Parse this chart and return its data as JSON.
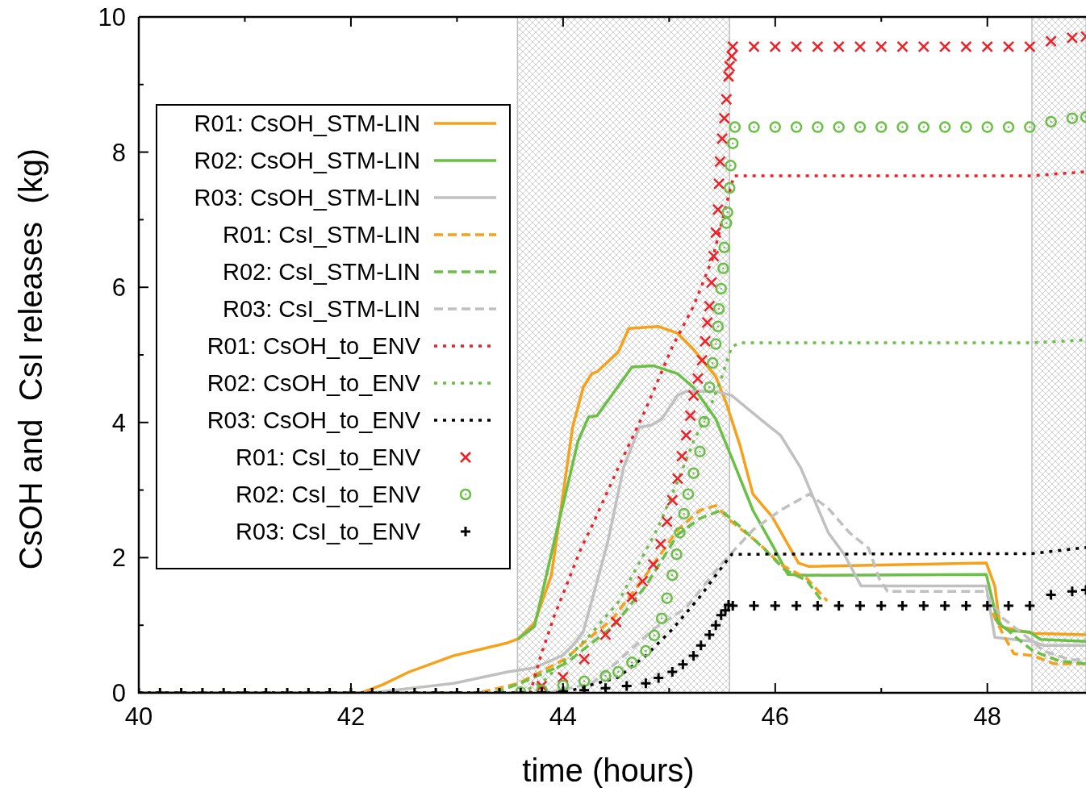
{
  "chart_data": {
    "type": "line",
    "xlabel": "time (hours)",
    "ylabel": "CsOH and  CsI releases  (kg)",
    "xlim": [
      40,
      48.93
    ],
    "ylim": [
      0,
      10
    ],
    "xticks": [
      40,
      {
        "value": 41,
        "label": null
      },
      42,
      {
        "value": 43,
        "label": null
      },
      44,
      {
        "value": 45,
        "label": null
      },
      46,
      {
        "value": 47,
        "label": null
      },
      48
    ],
    "yticks": [
      0,
      {
        "value": 1,
        "label": null
      },
      2,
      {
        "value": 3,
        "label": null
      },
      4,
      {
        "value": 5,
        "label": null
      },
      6,
      {
        "value": 7,
        "label": null
      },
      8,
      {
        "value": 9,
        "label": null
      },
      10
    ],
    "grid": false,
    "legend": "top left",
    "bands": [
      {
        "axis": "x",
        "from": 43.57,
        "to": 45.57,
        "color": "#c0c0c0"
      },
      {
        "axis": "x",
        "from": 48.42,
        "to": 48.93,
        "color": "#c0c0c0"
      }
    ],
    "series": [
      {
        "name": "R01: CsOH_STM-LIN",
        "color": "#f7a11a",
        "line_style": "solid",
        "x": [
          40,
          42.1,
          42.3,
          42.55,
          42.97,
          43.48,
          43.58,
          43.73,
          43.89,
          44.0,
          44.09,
          44.19,
          44.27,
          44.32,
          44.52,
          44.62,
          44.9,
          45.08,
          45.23,
          45.44,
          45.54,
          45.67,
          45.79,
          45.97,
          46.14,
          46.22,
          46.32,
          47.99,
          48.07,
          48.12,
          48.43,
          48.93
        ],
        "values": [
          0,
          0,
          0.12,
          0.31,
          0.55,
          0.74,
          0.8,
          1.03,
          1.74,
          2.94,
          3.93,
          4.52,
          4.72,
          4.75,
          5.04,
          5.39,
          5.42,
          5.32,
          5.08,
          4.68,
          4.28,
          3.65,
          2.94,
          2.61,
          2.14,
          1.92,
          1.87,
          1.92,
          1.58,
          0.98,
          0.88,
          0.86
        ]
      },
      {
        "name": "R02: CsOH_STM-LIN",
        "color": "#6abf45",
        "line_style": "solid",
        "x": [
          43.58,
          43.73,
          43.96,
          44.07,
          44.14,
          44.24,
          44.32,
          44.65,
          44.85,
          45.08,
          45.23,
          45.44,
          45.59,
          45.79,
          45.99,
          46.12,
          46.3,
          47.99,
          48.1,
          48.2,
          48.4,
          48.5,
          48.93
        ],
        "values": [
          0.8,
          0.98,
          2.53,
          3.25,
          3.72,
          4.08,
          4.1,
          4.82,
          4.84,
          4.72,
          4.52,
          4.05,
          3.48,
          2.7,
          2.14,
          1.75,
          1.74,
          1.75,
          1.03,
          0.92,
          0.9,
          0.79,
          0.76
        ]
      },
      {
        "name": "R03: CsOH_STM-LIN",
        "color": "#c0c0c0",
        "line_style": "solid",
        "x": [
          40,
          42.2,
          42.97,
          43.48,
          43.73,
          43.99,
          44.09,
          44.19,
          44.42,
          44.57,
          44.72,
          44.83,
          44.93,
          45.08,
          45.16,
          45.44,
          45.59,
          45.89,
          46.05,
          46.24,
          46.37,
          46.5,
          46.65,
          46.81,
          47.99,
          48.07,
          48.43,
          48.53,
          48.93
        ],
        "values": [
          0,
          0,
          0.14,
          0.31,
          0.37,
          0.55,
          0.7,
          0.9,
          2.22,
          3.33,
          3.93,
          3.96,
          4.05,
          4.4,
          4.46,
          4.46,
          4.4,
          4.01,
          3.81,
          3.33,
          2.85,
          2.37,
          2.05,
          1.58,
          1.58,
          0.82,
          0.76,
          0.7,
          0.7
        ]
      },
      {
        "name": "R01: CsI_STM-LIN",
        "color": "#f7a11a",
        "line_style": "dashed",
        "x": [
          40,
          43.2,
          43.58,
          44.02,
          44.24,
          44.47,
          44.78,
          45.08,
          45.29,
          45.44,
          45.59,
          45.84,
          46.05,
          46.3,
          46.49,
          47.0,
          48.05,
          48.15,
          48.25,
          48.43,
          48.63,
          48.93
        ],
        "values": [
          0,
          0,
          0.14,
          0.5,
          0.8,
          1.1,
          1.74,
          2.41,
          2.7,
          2.77,
          2.53,
          2.22,
          1.9,
          1.69,
          1.36,
          null,
          1.18,
          0.86,
          0.58,
          0.55,
          0.43,
          0.43
        ]
      },
      {
        "name": "R02: CsI_STM-LIN",
        "color": "#6abf45",
        "line_style": "dashed",
        "x": [
          40,
          43.35,
          43.58,
          44.02,
          44.47,
          44.78,
          45.08,
          45.29,
          45.49,
          45.64,
          45.89,
          46.09,
          46.3,
          46.43,
          47.0,
          48.07,
          48.27,
          48.43,
          48.68,
          48.93
        ],
        "values": [
          0,
          0,
          0.13,
          0.43,
          0.98,
          1.58,
          2.34,
          2.58,
          2.7,
          2.5,
          2.14,
          1.82,
          1.66,
          1.38,
          null,
          1.1,
          0.82,
          0.62,
          0.47,
          0.43
        ]
      },
      {
        "name": "R03: CsI_STM-LIN",
        "color": "#c0c0c0",
        "line_style": "dashed",
        "x": [
          40,
          43.86,
          44.27,
          44.52,
          44.85,
          45.16,
          45.49,
          45.79,
          46.05,
          46.32,
          46.5,
          46.7,
          46.88,
          46.98,
          47.06,
          47.97,
          48.15,
          48.4,
          48.53,
          48.78,
          48.93
        ],
        "values": [
          0,
          0,
          0.14,
          0.47,
          0.94,
          1.26,
          1.9,
          2.41,
          2.7,
          2.94,
          2.73,
          2.37,
          2.14,
          1.69,
          1.5,
          1.5,
          1.1,
          0.79,
          0.62,
          0.49,
          0.49
        ]
      },
      {
        "name": "R01: CsOH_to_ENV",
        "color": "#ee2127",
        "line_style": "dotted",
        "x": [
          40,
          43.69,
          43.79,
          43.92,
          44.04,
          44.17,
          44.27,
          44.52,
          44.78,
          45.03,
          45.23,
          45.41,
          45.54,
          45.61,
          48.42,
          48.93
        ],
        "values": [
          0,
          0,
          0.55,
          1.15,
          1.62,
          2.14,
          2.46,
          3.33,
          4.2,
          5.12,
          5.72,
          6.43,
          7.23,
          7.65,
          7.65,
          7.71
        ]
      },
      {
        "name": "R02: CsOH_to_ENV",
        "color": "#6abf45",
        "line_style": "dotted",
        "x": [
          40,
          43.6,
          43.8,
          44.0,
          44.25,
          44.52,
          44.72,
          44.9,
          45.08,
          45.23,
          45.38,
          45.49,
          45.59,
          45.67,
          48.42,
          48.93
        ],
        "values": [
          0,
          0,
          0.15,
          0.45,
          0.85,
          1.34,
          1.93,
          2.46,
          3.13,
          3.72,
          4.2,
          4.64,
          5.12,
          5.18,
          5.18,
          5.22
        ]
      },
      {
        "name": "R03: CsOH_to_ENV",
        "color": "#000000",
        "line_style": "dotted",
        "x": [
          40,
          44.0,
          44.52,
          44.78,
          45.03,
          45.29,
          45.44,
          45.59,
          48.42,
          48.93
        ],
        "values": [
          0,
          0,
          0.23,
          0.55,
          0.94,
          1.42,
          1.74,
          2.05,
          2.06,
          2.15
        ]
      },
      {
        "name": "R01: CsI_to_ENV",
        "type": "scatter",
        "marker": "cross",
        "color": "#ee2127",
        "x": [
          43.8,
          44.0,
          44.2,
          44.4,
          44.5,
          44.65,
          44.75,
          44.85,
          44.92,
          44.98,
          45.03,
          45.08,
          45.12,
          45.16,
          45.2,
          45.23,
          45.27,
          45.31,
          45.34,
          45.36,
          45.38,
          45.4,
          45.42,
          45.44,
          45.46,
          45.47,
          45.48,
          45.5,
          45.52,
          45.54,
          45.56,
          45.57,
          45.59,
          45.6,
          45.8,
          46.0,
          46.2,
          46.4,
          46.6,
          46.8,
          47.0,
          47.2,
          47.4,
          47.6,
          47.8,
          48.0,
          48.2,
          48.4,
          48.6,
          48.8,
          48.93
        ],
        "values": [
          0.1,
          0.23,
          0.5,
          0.86,
          1.05,
          1.42,
          1.65,
          1.9,
          2.2,
          2.53,
          2.85,
          3.17,
          3.5,
          3.81,
          4.1,
          4.4,
          4.65,
          4.92,
          5.2,
          5.48,
          5.72,
          6.07,
          6.46,
          6.81,
          7.15,
          7.53,
          7.86,
          8.2,
          8.5,
          8.78,
          9.12,
          9.27,
          9.42,
          9.56,
          9.56,
          9.56,
          9.56,
          9.56,
          9.56,
          9.56,
          9.56,
          9.56,
          9.56,
          9.56,
          9.56,
          9.56,
          9.56,
          9.56,
          9.64,
          9.69,
          9.71
        ]
      },
      {
        "name": "R02: CsI_to_ENV",
        "type": "scatter",
        "marker": "circle",
        "color": "#6abf45",
        "x": [
          43.6,
          43.8,
          44.0,
          44.2,
          44.4,
          44.52,
          44.65,
          44.78,
          44.86,
          44.93,
          44.98,
          45.03,
          45.07,
          45.1,
          45.14,
          45.18,
          45.23,
          45.29,
          45.33,
          45.38,
          45.41,
          45.44,
          45.46,
          45.47,
          45.49,
          45.51,
          45.52,
          45.54,
          45.55,
          45.57,
          45.58,
          45.6,
          45.62,
          45.8,
          46.0,
          46.2,
          46.4,
          46.6,
          46.8,
          47.0,
          47.2,
          47.4,
          47.6,
          47.8,
          48.0,
          48.2,
          48.4,
          48.6,
          48.8,
          48.93
        ],
        "values": [
          0.01,
          0.04,
          0.11,
          0.17,
          0.25,
          0.31,
          0.45,
          0.62,
          0.85,
          1.1,
          1.4,
          1.74,
          2.05,
          2.37,
          2.65,
          2.94,
          3.25,
          3.57,
          4.01,
          4.52,
          4.88,
          5.16,
          5.42,
          5.68,
          5.98,
          6.28,
          6.59,
          6.95,
          7.11,
          7.47,
          7.8,
          8.13,
          8.37,
          8.37,
          8.37,
          8.37,
          8.37,
          8.37,
          8.37,
          8.37,
          8.37,
          8.37,
          8.37,
          8.37,
          8.37,
          8.37,
          8.37,
          8.45,
          8.5,
          8.52
        ]
      },
      {
        "name": "R03: CsI_to_ENV",
        "type": "scatter",
        "marker": "plus",
        "color": "#000000",
        "x": [
          40,
          40.2,
          40.4,
          40.6,
          40.8,
          41.0,
          41.2,
          41.4,
          41.6,
          41.8,
          42.0,
          42.2,
          42.4,
          42.6,
          42.8,
          43.0,
          43.2,
          43.4,
          43.6,
          43.8,
          44.0,
          44.2,
          44.4,
          44.6,
          44.78,
          44.9,
          45.03,
          45.13,
          45.23,
          45.3,
          45.38,
          45.44,
          45.49,
          45.53,
          45.56,
          45.6,
          45.8,
          46.0,
          46.2,
          46.4,
          46.6,
          46.8,
          47.0,
          47.2,
          47.4,
          47.6,
          47.8,
          48.0,
          48.2,
          48.4,
          48.6,
          48.8,
          48.93
        ],
        "values": [
          0,
          0,
          0,
          0,
          0,
          0,
          0,
          0,
          0,
          0,
          0,
          0,
          0,
          0,
          0,
          0,
          0,
          0,
          0,
          0.01,
          0.02,
          0.04,
          0.07,
          0.1,
          0.14,
          0.22,
          0.31,
          0.42,
          0.55,
          0.7,
          0.86,
          1.0,
          1.15,
          1.22,
          1.3,
          1.29,
          1.29,
          1.29,
          1.29,
          1.29,
          1.29,
          1.29,
          1.29,
          1.29,
          1.29,
          1.29,
          1.29,
          1.29,
          1.29,
          1.29,
          1.45,
          1.5,
          1.52
        ]
      }
    ]
  }
}
